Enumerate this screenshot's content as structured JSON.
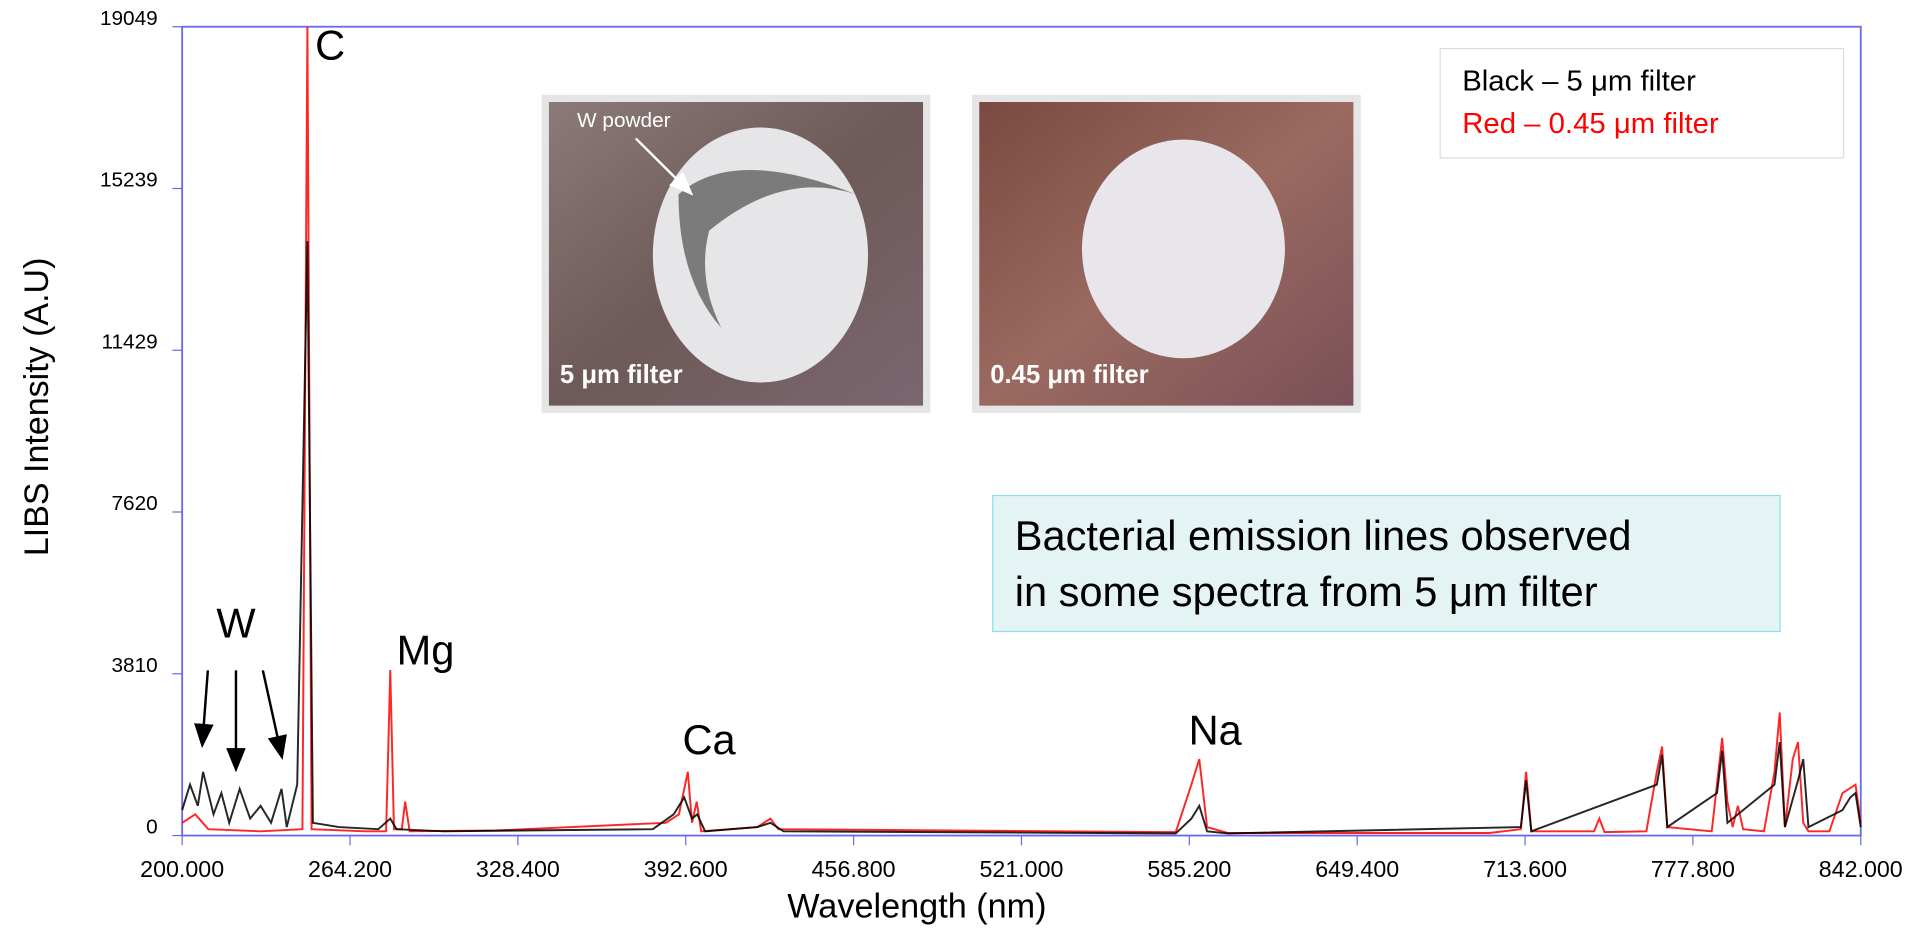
{
  "chart_data": {
    "type": "line",
    "xlabel": "Wavelength (nm)",
    "ylabel": "LIBS Intensity (A.U)",
    "xlim": [
      200,
      842
    ],
    "ylim": [
      0,
      19049
    ],
    "xticks": [
      {
        "value": 200,
        "label": "200.000"
      },
      {
        "value": 264.2,
        "label": "264.200"
      },
      {
        "value": 328.4,
        "label": "328.400"
      },
      {
        "value": 392.6,
        "label": "392.600"
      },
      {
        "value": 456.8,
        "label": "456.800"
      },
      {
        "value": 521,
        "label": "521.000"
      },
      {
        "value": 585.2,
        "label": "585.200"
      },
      {
        "value": 649.4,
        "label": "649.400"
      },
      {
        "value": 713.6,
        "label": "713.600"
      },
      {
        "value": 777.8,
        "label": "777.800"
      },
      {
        "value": 842,
        "label": "842.000"
      }
    ],
    "yticks": [
      0,
      3810,
      7620,
      11429,
      15239,
      19049
    ],
    "grid": false,
    "series": [
      {
        "name": "Red – 0.45 μm filter",
        "color": "#ff0000",
        "x": [
          200,
          205,
          210,
          230,
          246,
          247.9,
          249.5,
          270,
          278,
          279.6,
          281,
          284,
          285.3,
          287,
          320,
          385,
          390,
          393.4,
          395,
          396.8,
          398.5,
          420,
          425,
          428,
          580,
          586,
          589,
          592,
          600,
          700,
          712,
          714,
          716,
          740,
          742,
          744,
          760,
          764,
          766,
          768,
          785,
          787,
          789,
          791,
          793,
          795,
          797,
          805,
          809,
          811,
          813,
          816,
          818,
          820,
          822,
          830,
          835,
          840,
          842
        ],
        "values": [
          300,
          500,
          150,
          100,
          150,
          19049,
          150,
          100,
          100,
          3900,
          150,
          150,
          800,
          100,
          120,
          300,
          500,
          1500,
          300,
          800,
          100,
          200,
          400,
          150,
          80,
          1200,
          1800,
          200,
          60,
          60,
          150,
          1500,
          100,
          100,
          400,
          80,
          100,
          1500,
          2100,
          200,
          100,
          1200,
          2300,
          800,
          200,
          700,
          150,
          100,
          1500,
          2900,
          200,
          1800,
          2200,
          300,
          100,
          100,
          1000,
          1200,
          300
        ]
      },
      {
        "name": "Black – 5 μm filter",
        "color": "#000000",
        "x": [
          200,
          203,
          206,
          208,
          212,
          215,
          218,
          222,
          226,
          230,
          234,
          238,
          240,
          244,
          247.9,
          250,
          260,
          275,
          279.6,
          282,
          300,
          380,
          388,
          392,
          395,
          397,
          400,
          420,
          425,
          430,
          580,
          586,
          589,
          592,
          600,
          712,
          714,
          716,
          764,
          766,
          768,
          787,
          789,
          791,
          809,
          811,
          813,
          818,
          820,
          822,
          835,
          838,
          840,
          842
        ],
        "values": [
          600,
          1200,
          700,
          1500,
          500,
          1000,
          300,
          1100,
          400,
          700,
          300,
          1100,
          200,
          1200,
          14000,
          300,
          200,
          150,
          400,
          150,
          100,
          150,
          500,
          900,
          400,
          500,
          100,
          200,
          300,
          100,
          50,
          400,
          700,
          100,
          50,
          200,
          1300,
          100,
          1200,
          1900,
          200,
          1000,
          2000,
          300,
          1200,
          2200,
          200,
          1300,
          1800,
          200,
          600,
          900,
          1000,
          200
        ]
      }
    ],
    "annotations": [
      "C",
      "W",
      "Mg",
      "Ca",
      "Na"
    ],
    "note": [
      "Bacterial emission lines observed",
      "in some spectra from 5 μm filter"
    ],
    "photos": {
      "pointer": "W powder",
      "left": "5 μm filter",
      "right": "0.45 μm filter"
    }
  }
}
